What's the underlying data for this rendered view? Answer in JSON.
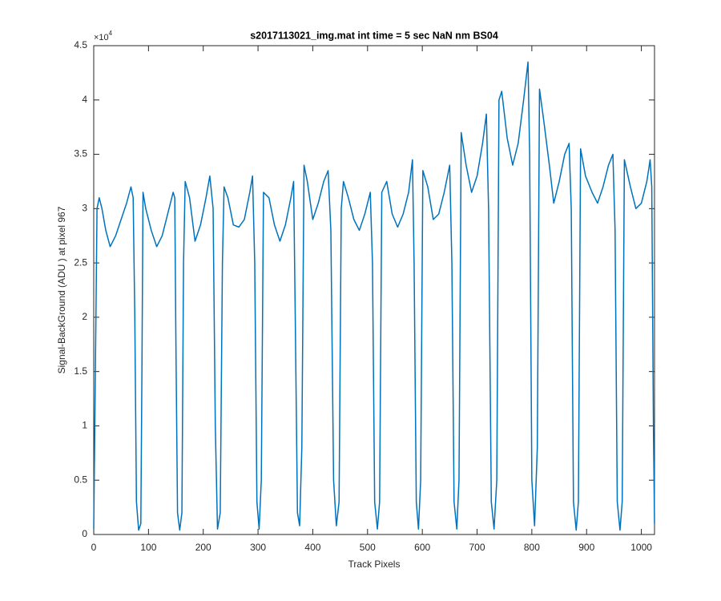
{
  "chart_data": {
    "type": "line",
    "title": "s2017113021_img.mat int time = 5 sec  NaN nm BS04",
    "x_label": "Track Pixels",
    "y_label": "Signal-BackGround (ADU ) at pixel 967",
    "y_exponent_base": "×10",
    "y_exponent_power": "4",
    "color": "#0072bd",
    "xlim": [
      0,
      1024
    ],
    "ylim": [
      0,
      45000
    ],
    "xticks": [
      0,
      100,
      200,
      300,
      400,
      500,
      600,
      700,
      800,
      900,
      1000
    ],
    "yticks": [
      0,
      {
        "value": 5000,
        "label": "0.5"
      },
      {
        "value": 10000,
        "label": "1"
      },
      {
        "value": 15000,
        "label": "1.5"
      },
      {
        "value": 20000,
        "label": "2"
      },
      {
        "value": 25000,
        "label": "2.5"
      },
      {
        "value": 30000,
        "label": "3"
      },
      {
        "value": 35000,
        "label": "3.5"
      },
      {
        "value": 40000,
        "label": "4"
      },
      {
        "value": 45000,
        "label": "4.5"
      }
    ],
    "x": [
      0,
      3,
      6,
      10,
      15,
      22,
      30,
      40,
      50,
      60,
      68,
      72,
      75,
      78,
      82,
      86,
      88,
      90,
      95,
      105,
      115,
      125,
      135,
      145,
      148,
      150,
      153,
      157,
      161,
      164,
      167,
      175,
      185,
      195,
      205,
      212,
      218,
      222,
      226,
      231,
      235,
      238,
      245,
      255,
      265,
      275,
      285,
      290,
      294,
      298,
      302,
      306,
      310,
      320,
      330,
      340,
      350,
      360,
      365,
      368,
      372,
      376,
      380,
      384,
      390,
      400,
      410,
      420,
      428,
      433,
      438,
      443,
      448,
      452,
      456,
      465,
      475,
      485,
      495,
      505,
      509,
      513,
      518,
      522,
      526,
      535,
      545,
      555,
      565,
      575,
      582,
      585,
      589,
      593,
      597,
      601,
      610,
      620,
      630,
      640,
      650,
      654,
      658,
      663,
      667,
      671,
      680,
      690,
      700,
      710,
      717,
      721,
      726,
      731,
      736,
      740,
      745,
      755,
      765,
      775,
      785,
      793,
      796,
      800,
      805,
      810,
      814,
      822,
      832,
      840,
      850,
      860,
      868,
      872,
      876,
      881,
      885,
      889,
      898,
      910,
      920,
      930,
      940,
      948,
      952,
      956,
      961,
      965,
      969,
      980,
      990,
      1000,
      1010,
      1016,
      1019,
      1022,
      1024
    ],
    "values": [
      500,
      15000,
      30000,
      31000,
      30000,
      28000,
      26500,
      27500,
      29000,
      30500,
      32000,
      31000,
      20000,
      3000,
      400,
      1000,
      15000,
      31500,
      30000,
      28000,
      26500,
      27500,
      29500,
      31500,
      31000,
      18000,
      2000,
      400,
      2000,
      25000,
      32500,
      31000,
      27000,
      28500,
      31000,
      33000,
      30000,
      10000,
      500,
      2000,
      25000,
      32000,
      31000,
      28500,
      28300,
      29000,
      31500,
      33000,
      25000,
      3000,
      500,
      5000,
      31500,
      31000,
      28500,
      27000,
      28500,
      31000,
      32500,
      20000,
      2000,
      800,
      8000,
      34000,
      32500,
      29000,
      30500,
      32500,
      33500,
      28000,
      5000,
      800,
      3000,
      30000,
      32500,
      31000,
      29000,
      28000,
      29500,
      31500,
      25000,
      3000,
      500,
      3000,
      31500,
      32500,
      29500,
      28300,
      29500,
      31500,
      34500,
      25000,
      3000,
      500,
      5000,
      33500,
      32000,
      29000,
      29500,
      31500,
      34000,
      25000,
      3000,
      500,
      5000,
      37000,
      34000,
      31500,
      33000,
      36000,
      38700,
      30000,
      3000,
      500,
      5000,
      40000,
      40800,
      36500,
      34000,
      36000,
      40000,
      43500,
      35000,
      5000,
      800,
      8000,
      41000,
      38000,
      34000,
      30500,
      32500,
      35000,
      36000,
      30000,
      3000,
      400,
      3000,
      35500,
      33000,
      31500,
      30500,
      32000,
      34000,
      35000,
      28000,
      3000,
      400,
      3000,
      34500,
      32000,
      30000,
      30500,
      32500,
      34500,
      32000,
      10000,
      1000
    ]
  }
}
